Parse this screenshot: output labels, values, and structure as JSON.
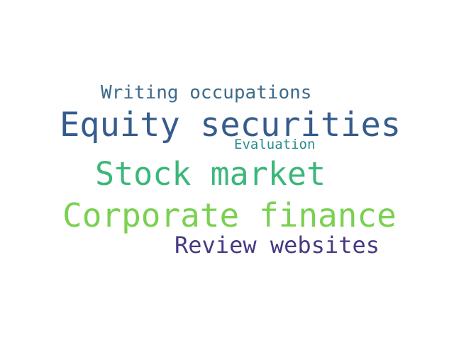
{
  "word_cloud": {
    "words": [
      {
        "id": "w-writing",
        "text": "Writing occupations",
        "color": "#3d6b8c"
      },
      {
        "id": "w-equity",
        "text": "Equity securities",
        "color": "#365c8d"
      },
      {
        "id": "w-evaluation",
        "text": "Evaluation",
        "color": "#2a8c8c"
      },
      {
        "id": "w-stock",
        "text": "Stock market",
        "color": "#3bb77a"
      },
      {
        "id": "w-corporate",
        "text": "Corporate finance",
        "color": "#7ad151"
      },
      {
        "id": "w-review",
        "text": "Review websites",
        "color": "#443a83"
      }
    ]
  }
}
